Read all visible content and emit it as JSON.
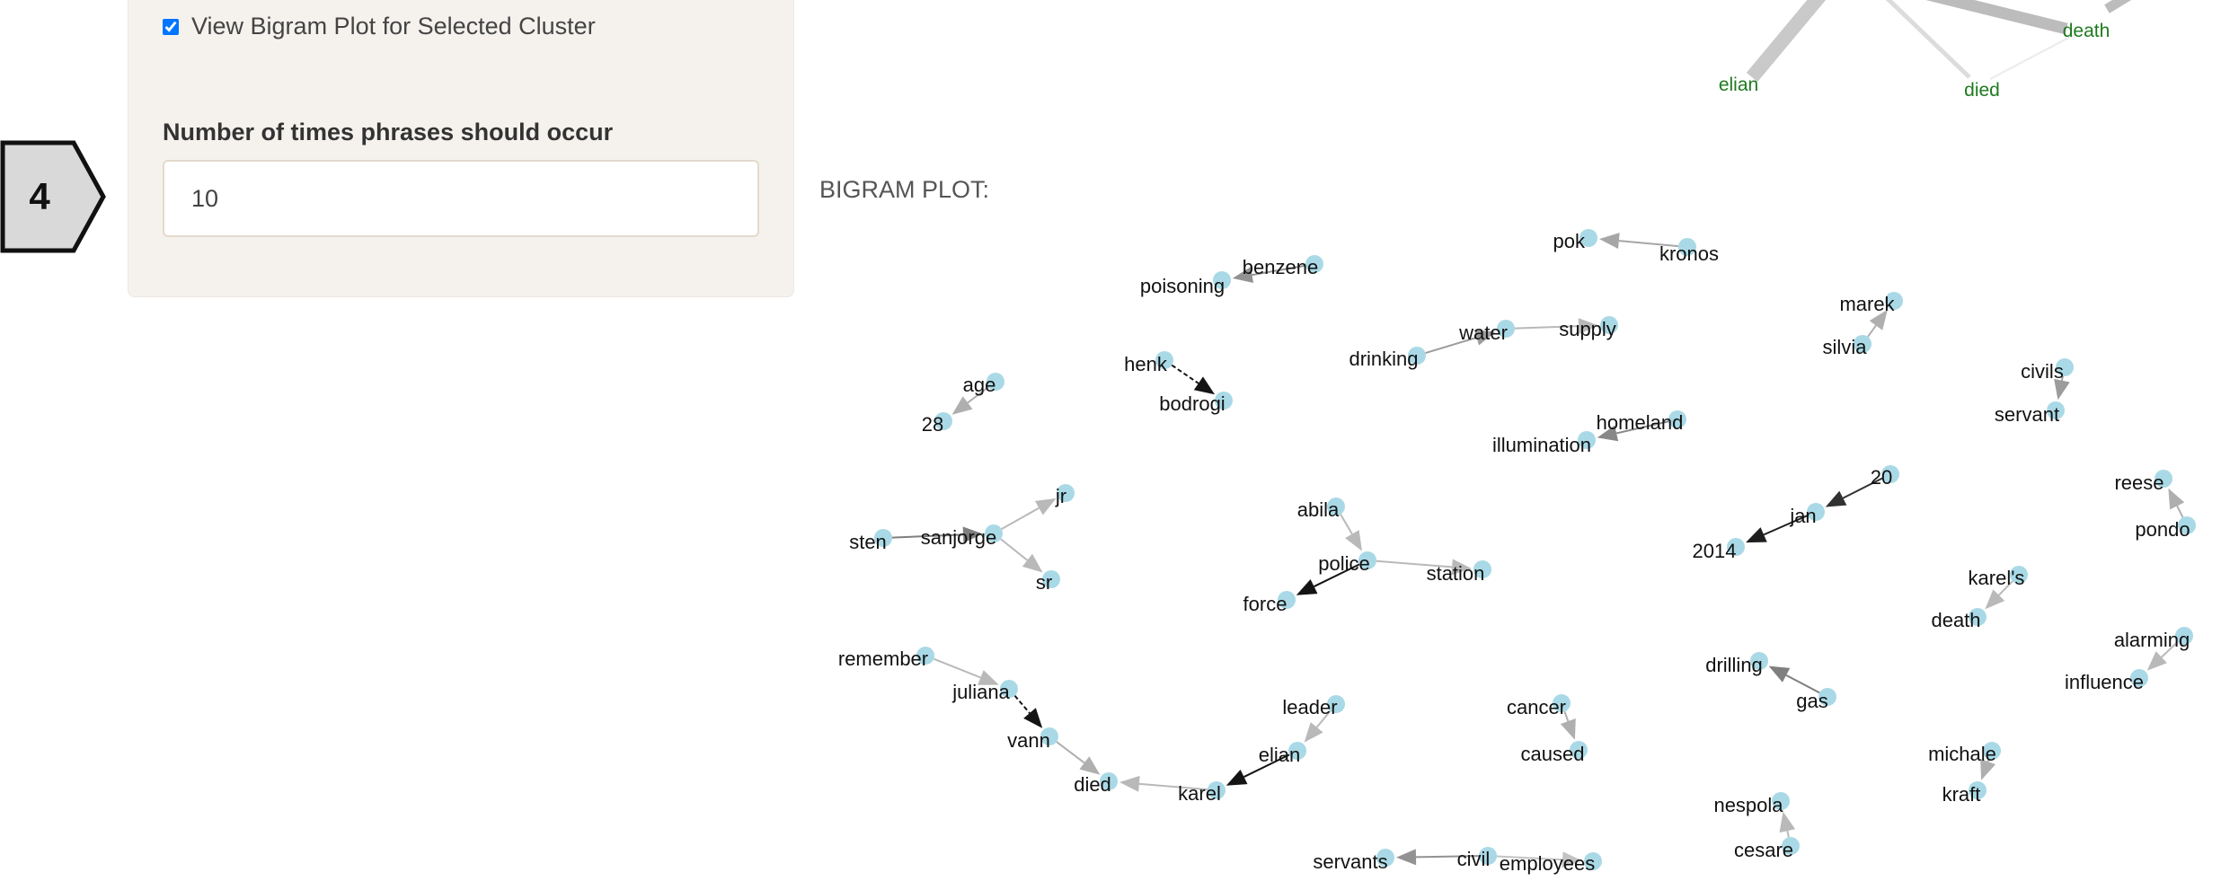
{
  "step_marker": {
    "number": "4"
  },
  "sidebar": {
    "checkbox_label": "View Bigram Plot for Selected Cluster",
    "checkbox_checked": true,
    "occurrence_label": "Number of times phrases should occur",
    "occurrence_value": "10"
  },
  "bigram": {
    "title": "BIGRAM PLOT:",
    "top_graph_labels": [
      {
        "id": "death",
        "text": "death"
      },
      {
        "id": "elian",
        "text": "elian"
      },
      {
        "id": "died",
        "text": "died"
      }
    ],
    "nodes": [
      {
        "id": "pok",
        "text": "pok"
      },
      {
        "id": "kronos",
        "text": "kronos"
      },
      {
        "id": "benzene",
        "text": "benzene"
      },
      {
        "id": "poisoning",
        "text": "poisoning"
      },
      {
        "id": "marek",
        "text": "marek"
      },
      {
        "id": "silvia",
        "text": "silvia"
      },
      {
        "id": "drinking",
        "text": "drinking"
      },
      {
        "id": "water",
        "text": "water"
      },
      {
        "id": "supply",
        "text": "supply"
      },
      {
        "id": "henk",
        "text": "henk"
      },
      {
        "id": "bodrogi",
        "text": "bodrogi"
      },
      {
        "id": "civils",
        "text": "civils"
      },
      {
        "id": "servant",
        "text": "servant"
      },
      {
        "id": "age",
        "text": "age"
      },
      {
        "id": "n28",
        "text": "28"
      },
      {
        "id": "homeland",
        "text": "homeland"
      },
      {
        "id": "illumination",
        "text": "illumination"
      },
      {
        "id": "n20",
        "text": "20"
      },
      {
        "id": "jan",
        "text": "jan"
      },
      {
        "id": "n2014",
        "text": "2014"
      },
      {
        "id": "reese",
        "text": "reese"
      },
      {
        "id": "pondo",
        "text": "pondo"
      },
      {
        "id": "jr",
        "text": "jr"
      },
      {
        "id": "sten",
        "text": "sten"
      },
      {
        "id": "sanjorge",
        "text": "sanjorge"
      },
      {
        "id": "sr",
        "text": "sr"
      },
      {
        "id": "abila",
        "text": "abila"
      },
      {
        "id": "police",
        "text": "police"
      },
      {
        "id": "station",
        "text": "station"
      },
      {
        "id": "force",
        "text": "force"
      },
      {
        "id": "karels",
        "text": "karel's"
      },
      {
        "id": "death2",
        "text": "death"
      },
      {
        "id": "remember",
        "text": "remember"
      },
      {
        "id": "juliana",
        "text": "juliana"
      },
      {
        "id": "vann",
        "text": "vann"
      },
      {
        "id": "died2",
        "text": "died"
      },
      {
        "id": "karel",
        "text": "karel"
      },
      {
        "id": "elian2",
        "text": "elian"
      },
      {
        "id": "leader",
        "text": "leader"
      },
      {
        "id": "drilling",
        "text": "drilling"
      },
      {
        "id": "gas",
        "text": "gas"
      },
      {
        "id": "alarming",
        "text": "alarming"
      },
      {
        "id": "influence",
        "text": "influence"
      },
      {
        "id": "cancer",
        "text": "cancer"
      },
      {
        "id": "caused",
        "text": "caused"
      },
      {
        "id": "michale",
        "text": "michale"
      },
      {
        "id": "kraft",
        "text": "kraft"
      },
      {
        "id": "nespola",
        "text": "nespola"
      },
      {
        "id": "cesare",
        "text": "cesare"
      },
      {
        "id": "servants",
        "text": "servants"
      },
      {
        "id": "civil",
        "text": "civil"
      },
      {
        "id": "employees",
        "text": "employees"
      }
    ],
    "edges": [
      {
        "from": "kronos",
        "to": "pok",
        "strength": 0.25
      },
      {
        "from": "benzene",
        "to": "poisoning",
        "strength": 0.35
      },
      {
        "from": "silvia",
        "to": "marek",
        "strength": 0.2
      },
      {
        "from": "drinking",
        "to": "water",
        "strength": 0.3
      },
      {
        "from": "water",
        "to": "supply",
        "strength": 0.15
      },
      {
        "from": "henk",
        "to": "bodrogi",
        "strength": 1.0
      },
      {
        "from": "civils",
        "to": "servant",
        "strength": 0.3
      },
      {
        "from": "age",
        "to": "n28",
        "strength": 0.2
      },
      {
        "from": "homeland",
        "to": "illumination",
        "strength": 0.4
      },
      {
        "from": "n20",
        "to": "jan",
        "strength": 0.85
      },
      {
        "from": "jan",
        "to": "n2014",
        "strength": 0.95
      },
      {
        "from": "pondo",
        "to": "reese",
        "strength": 0.2
      },
      {
        "from": "sten",
        "to": "sanjorge",
        "strength": 0.45
      },
      {
        "from": "sanjorge",
        "to": "jr",
        "strength": 0.15
      },
      {
        "from": "sanjorge",
        "to": "sr",
        "strength": 0.15
      },
      {
        "from": "abila",
        "to": "police",
        "strength": 0.15
      },
      {
        "from": "police",
        "to": "station",
        "strength": 0.15
      },
      {
        "from": "police",
        "to": "force",
        "strength": 1.0
      },
      {
        "from": "karels",
        "to": "death2",
        "strength": 0.15
      },
      {
        "from": "remember",
        "to": "juliana",
        "strength": 0.15
      },
      {
        "from": "juliana",
        "to": "vann",
        "strength": 1.0
      },
      {
        "from": "vann",
        "to": "died2",
        "strength": 0.2
      },
      {
        "from": "karel",
        "to": "died2",
        "strength": 0.15
      },
      {
        "from": "elian2",
        "to": "karel",
        "strength": 1.0
      },
      {
        "from": "leader",
        "to": "elian2",
        "strength": 0.15
      },
      {
        "from": "gas",
        "to": "drilling",
        "strength": 0.45
      },
      {
        "from": "alarming",
        "to": "influence",
        "strength": 0.15
      },
      {
        "from": "cancer",
        "to": "caused",
        "strength": 0.2
      },
      {
        "from": "michale",
        "to": "kraft",
        "strength": 0.2
      },
      {
        "from": "cesare",
        "to": "nespola",
        "strength": 0.15
      },
      {
        "from": "civil",
        "to": "servants",
        "strength": 0.35
      },
      {
        "from": "civil",
        "to": "employees",
        "strength": 0.1
      }
    ]
  }
}
